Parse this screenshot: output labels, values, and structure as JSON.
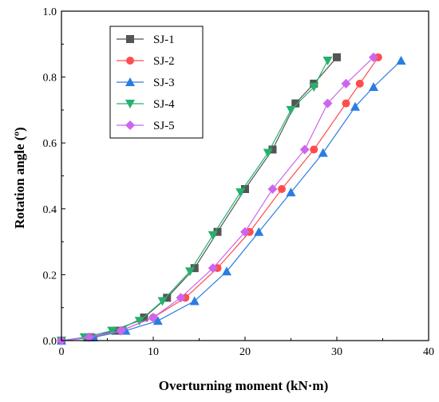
{
  "chart_data": {
    "type": "line",
    "title": "",
    "xlabel": "Overturning moment (kN·m)",
    "ylabel": "Rotation angle (º)",
    "xlim": [
      0,
      40
    ],
    "ylim": [
      0,
      1.0
    ],
    "xticks": [
      0,
      10,
      20,
      30,
      40
    ],
    "yticks": [
      0.0,
      0.2,
      0.4,
      0.6,
      0.8,
      1.0
    ],
    "xtick_labels": [
      "0",
      "10",
      "20",
      "30",
      "40"
    ],
    "ytick_labels": [
      "0.0",
      "0.2",
      "0.4",
      "0.6",
      "0.8",
      "1.0"
    ],
    "grid": false,
    "legend_position": "top-left",
    "series": [
      {
        "name": "SJ-1",
        "color": "#555555",
        "marker": "square",
        "x": [
          0,
          3.0,
          6.0,
          9.0,
          11.5,
          14.5,
          17.0,
          20.0,
          23.0,
          25.5,
          27.5,
          30.0
        ],
        "y": [
          0,
          0.01,
          0.03,
          0.07,
          0.13,
          0.22,
          0.33,
          0.46,
          0.58,
          0.72,
          0.78,
          0.86
        ]
      },
      {
        "name": "SJ-2",
        "color": "#ff4d4d",
        "marker": "circle",
        "x": [
          0,
          3.5,
          6.5,
          10.0,
          13.5,
          17.0,
          20.5,
          24.0,
          27.5,
          31.0,
          32.5,
          34.5
        ],
        "y": [
          0,
          0.01,
          0.03,
          0.07,
          0.13,
          0.22,
          0.33,
          0.46,
          0.58,
          0.72,
          0.78,
          0.86
        ]
      },
      {
        "name": "SJ-3",
        "color": "#2a7de1",
        "marker": "triangle-up",
        "x": [
          0,
          3.5,
          7.0,
          10.5,
          14.5,
          18.0,
          21.5,
          25.0,
          28.5,
          32.0,
          34.0,
          37.0
        ],
        "y": [
          0,
          0.01,
          0.03,
          0.06,
          0.12,
          0.21,
          0.33,
          0.45,
          0.57,
          0.71,
          0.77,
          0.85
        ]
      },
      {
        "name": "SJ-4",
        "color": "#26b06d",
        "marker": "triangle-down",
        "x": [
          0,
          2.5,
          5.5,
          8.5,
          11.0,
          14.0,
          16.5,
          19.5,
          22.5,
          25.0,
          27.5,
          29.0
        ],
        "y": [
          0,
          0.01,
          0.03,
          0.06,
          0.12,
          0.21,
          0.32,
          0.45,
          0.57,
          0.7,
          0.77,
          0.85
        ]
      },
      {
        "name": "SJ-5",
        "color": "#cc66ee",
        "marker": "diamond",
        "x": [
          0,
          3.0,
          6.5,
          10.0,
          13.0,
          16.5,
          20.0,
          23.0,
          26.5,
          29.0,
          31.0,
          34.0
        ],
        "y": [
          0,
          0.01,
          0.03,
          0.07,
          0.13,
          0.22,
          0.33,
          0.46,
          0.58,
          0.72,
          0.78,
          0.86
        ]
      }
    ]
  }
}
